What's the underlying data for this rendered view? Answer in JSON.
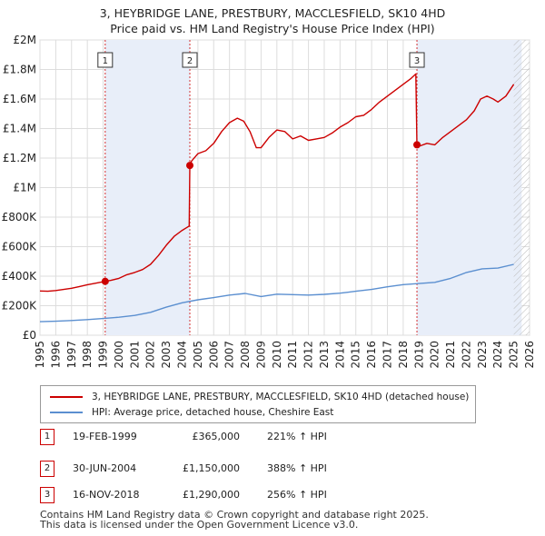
{
  "chart_data": {
    "type": "line",
    "title": "3, HEYBRIDGE LANE, PRESTBURY, MACCLESFIELD, SK10 4HD",
    "subtitle": "Price paid vs. HM Land Registry's House Price Index (HPI)",
    "xlabel": "",
    "ylabel": "",
    "xlim": [
      1995,
      2026
    ],
    "ylim": [
      0,
      2000000
    ],
    "y_ticks": [
      0,
      200000,
      400000,
      600000,
      800000,
      1000000,
      1200000,
      1400000,
      1600000,
      1800000,
      2000000
    ],
    "y_tick_labels": [
      "£0",
      "£200K",
      "£400K",
      "£600K",
      "£800K",
      "£1M",
      "£1.2M",
      "£1.4M",
      "£1.6M",
      "£1.8M",
      "£2M"
    ],
    "x_ticks": [
      1995,
      1996,
      1997,
      1998,
      1999,
      2000,
      2001,
      2002,
      2003,
      2004,
      2005,
      2006,
      2007,
      2008,
      2009,
      2010,
      2011,
      2012,
      2013,
      2014,
      2015,
      2016,
      2017,
      2018,
      2019,
      2020,
      2021,
      2022,
      2023,
      2024,
      2025,
      2026
    ],
    "grid": true,
    "series": [
      {
        "name": "3, HEYBRIDGE LANE, PRESTBURY, MACCLESFIELD, SK10 4HD (detached house)",
        "color": "#cc0000",
        "x": [
          1995.0,
          1995.5,
          1996.0,
          1996.5,
          1997.0,
          1997.5,
          1998.0,
          1998.5,
          1999.13,
          1999.5,
          2000.0,
          2000.5,
          2001.0,
          2001.5,
          2002.0,
          2002.5,
          2003.0,
          2003.5,
          2004.0,
          2004.45,
          2004.49,
          2004.6,
          2005.0,
          2005.5,
          2006.0,
          2006.5,
          2007.0,
          2007.5,
          2007.9,
          2008.3,
          2008.7,
          2009.0,
          2009.5,
          2010.0,
          2010.5,
          2011.0,
          2011.5,
          2012.0,
          2012.5,
          2013.0,
          2013.5,
          2014.0,
          2014.5,
          2015.0,
          2015.5,
          2016.0,
          2016.5,
          2017.0,
          2017.5,
          2018.0,
          2018.5,
          2018.8,
          2018.87,
          2019.0,
          2019.5,
          2020.0,
          2020.5,
          2021.0,
          2021.5,
          2022.0,
          2022.5,
          2022.9,
          2023.3,
          2023.7,
          2024.0,
          2024.5,
          2025.0
        ],
        "y": [
          300000,
          298000,
          303000,
          310000,
          318000,
          330000,
          342000,
          352000,
          365000,
          372000,
          385000,
          410000,
          425000,
          445000,
          480000,
          540000,
          610000,
          670000,
          710000,
          740000,
          1150000,
          1180000,
          1230000,
          1250000,
          1300000,
          1380000,
          1440000,
          1470000,
          1450000,
          1380000,
          1270000,
          1270000,
          1340000,
          1390000,
          1380000,
          1330000,
          1350000,
          1320000,
          1330000,
          1340000,
          1370000,
          1410000,
          1440000,
          1480000,
          1490000,
          1530000,
          1580000,
          1620000,
          1660000,
          1700000,
          1740000,
          1770000,
          1290000,
          1280000,
          1300000,
          1290000,
          1340000,
          1380000,
          1420000,
          1460000,
          1520000,
          1600000,
          1620000,
          1600000,
          1580000,
          1620000,
          1700000
        ]
      },
      {
        "name": "HPI: Average price, detached house, Cheshire East",
        "color": "#5b8fd0",
        "x": [
          1995.0,
          1996.0,
          1997.0,
          1998.0,
          1999.0,
          2000.0,
          2001.0,
          2002.0,
          2003.0,
          2004.0,
          2005.0,
          2006.0,
          2007.0,
          2008.0,
          2009.0,
          2010.0,
          2011.0,
          2012.0,
          2013.0,
          2014.0,
          2015.0,
          2016.0,
          2017.0,
          2018.0,
          2019.0,
          2020.0,
          2021.0,
          2022.0,
          2023.0,
          2024.0,
          2025.0
        ],
        "y": [
          92000,
          95000,
          100000,
          106000,
          113000,
          122000,
          134000,
          155000,
          190000,
          220000,
          240000,
          255000,
          272000,
          283000,
          262000,
          278000,
          275000,
          272000,
          277000,
          285000,
          298000,
          310000,
          328000,
          343000,
          350000,
          358000,
          385000,
          425000,
          450000,
          455000,
          480000
        ]
      }
    ],
    "sales": [
      {
        "label": "1",
        "x": 1999.13,
        "y": 365000
      },
      {
        "label": "2",
        "x": 2004.49,
        "y": 1150000
      },
      {
        "label": "3",
        "x": 2018.87,
        "y": 1290000
      }
    ],
    "shaded_bands": [
      [
        1999.13,
        2004.49
      ],
      [
        2018.87,
        2025.5
      ]
    ],
    "hatch_from": 2025.0
  },
  "legend": {
    "red_label": "3, HEYBRIDGE LANE, PRESTBURY, MACCLESFIELD, SK10 4HD (detached house)",
    "blue_label": "HPI: Average price, detached house, Cheshire East"
  },
  "table": [
    {
      "num": "1",
      "date": "19-FEB-1999",
      "price": "£365,000",
      "hpi": "221% ↑ HPI"
    },
    {
      "num": "2",
      "date": "30-JUN-2004",
      "price": "£1,150,000",
      "hpi": "388% ↑ HPI"
    },
    {
      "num": "3",
      "date": "16-NOV-2018",
      "price": "£1,290,000",
      "hpi": "256% ↑ HPI"
    }
  ],
  "footer": {
    "line1": "Contains HM Land Registry data © Crown copyright and database right 2025.",
    "line2": "This data is licensed under the Open Government Licence v3.0."
  }
}
